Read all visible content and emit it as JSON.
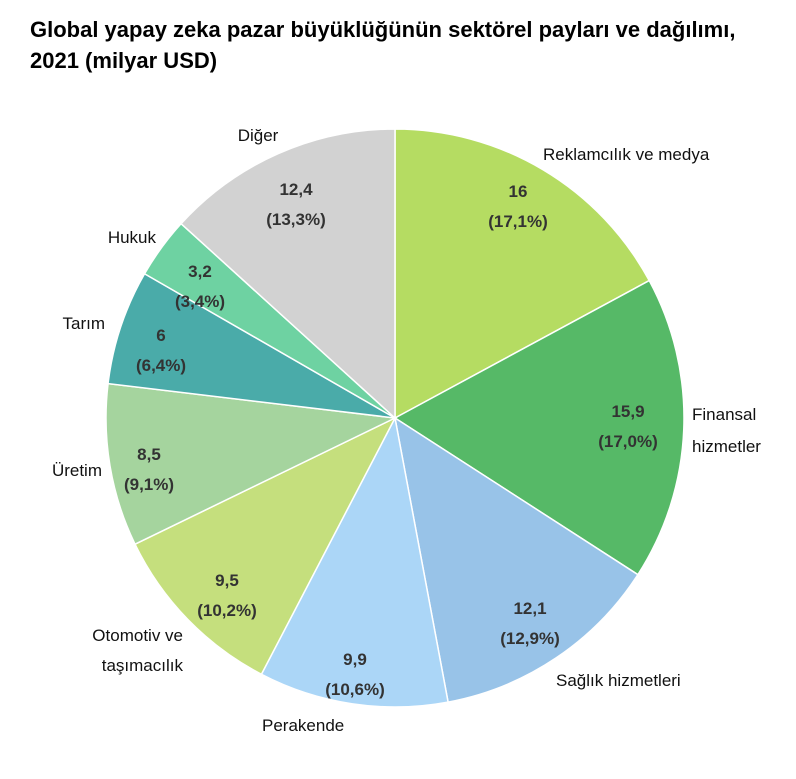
{
  "chart_data": {
    "type": "pie",
    "title": "Global yapay zeka pazar büyüklüğünün sektörel payları ve dağılımı, 2021 (milyar USD)",
    "slices": [
      {
        "name": "Reklamcılık ve medya",
        "value": 16,
        "value_label": "16",
        "percent_label": "(17,1%)",
        "color": "#b5dc62"
      },
      {
        "name": "Finansal hizmetler",
        "value": 15.9,
        "value_label": "15,9",
        "percent_label": "(17,0%)",
        "color": "#56b967"
      },
      {
        "name": "Sağlık hizmetleri",
        "value": 12.1,
        "value_label": "12,1",
        "percent_label": "(12,9%)",
        "color": "#98c3e8"
      },
      {
        "name": "Perakende",
        "value": 9.9,
        "value_label": "9,9",
        "percent_label": "(10,6%)",
        "color": "#abd6f7"
      },
      {
        "name": "Otomotiv ve taşımacılık",
        "value": 9.5,
        "value_label": "9,5",
        "percent_label": "(10,2%)",
        "color": "#c5df7d"
      },
      {
        "name": "Üretim",
        "value": 8.5,
        "value_label": "8,5",
        "percent_label": "(9,1%)",
        "color": "#a5d49e"
      },
      {
        "name": "Tarım",
        "value": 6,
        "value_label": "6",
        "percent_label": "(6,4%)",
        "color": "#4aaba9"
      },
      {
        "name": "Hukuk",
        "value": 3.2,
        "value_label": "3,2",
        "percent_label": "(3,4%)",
        "color": "#6ed2a2"
      },
      {
        "name": "Diğer",
        "value": 12.4,
        "value_label": "12,4",
        "percent_label": "(13,3%)",
        "color": "#d2d2d2"
      }
    ]
  }
}
